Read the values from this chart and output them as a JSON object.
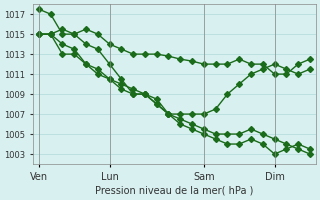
{
  "title": "",
  "xlabel": "Pression niveau de la mer( hPa )",
  "ylabel": "",
  "background_color": "#d8f0f0",
  "grid_color": "#b0d8d8",
  "line_color": "#1a6b1a",
  "ylim": [
    1002,
    1018
  ],
  "yticks": [
    1003,
    1005,
    1007,
    1009,
    1011,
    1013,
    1015,
    1017
  ],
  "xtick_labels": [
    "Ven",
    "Lun",
    "Sam",
    "Dim"
  ],
  "xtick_positions": [
    0,
    6,
    14,
    20
  ],
  "vlines": [
    0,
    6,
    14,
    20
  ],
  "line1": [
    1017.5,
    1017,
    1015,
    1015,
    1015.5,
    1015,
    1014,
    1013.5,
    1013,
    1013,
    1013,
    1012.8,
    1012.5,
    1012.3,
    1012,
    1012,
    1012,
    1012.5,
    1012,
    1012,
    1011,
    1011,
    1012,
    1012.5
  ],
  "line2": [
    1015,
    1015,
    1015.5,
    1015,
    1014,
    1013.5,
    1012,
    1010.5,
    1009,
    1009,
    1008,
    1007,
    1006.5,
    1006,
    1005.5,
    1005,
    1005,
    1005,
    1005.5,
    1005,
    1004.5,
    1004,
    1003.5,
    1003
  ],
  "line3": [
    1015,
    1015,
    1014,
    1013.5,
    1012,
    1011.5,
    1010.5,
    1009.5,
    1009,
    1009,
    1008,
    1007,
    1006,
    1005.5,
    1005,
    1004.5,
    1004,
    1004,
    1004.5,
    1004,
    1003,
    1003.5,
    1004,
    1003.5
  ],
  "line4": [
    1015,
    1015,
    1013,
    1013,
    1012,
    1011,
    1010.5,
    1010,
    1009.5,
    1009,
    1008.5,
    1007,
    1007,
    1007,
    1007,
    1007.5,
    1009,
    1010,
    1011,
    1011.5,
    1012,
    1011.5,
    1011,
    1011.5
  ],
  "line5_x": [
    0,
    1,
    2,
    3,
    4,
    5,
    6,
    7,
    8,
    9,
    10,
    11,
    12,
    13,
    14,
    15,
    16,
    17,
    18,
    19,
    20,
    21,
    22,
    23
  ],
  "figsize": [
    3.2,
    2.0
  ],
  "dpi": 100
}
